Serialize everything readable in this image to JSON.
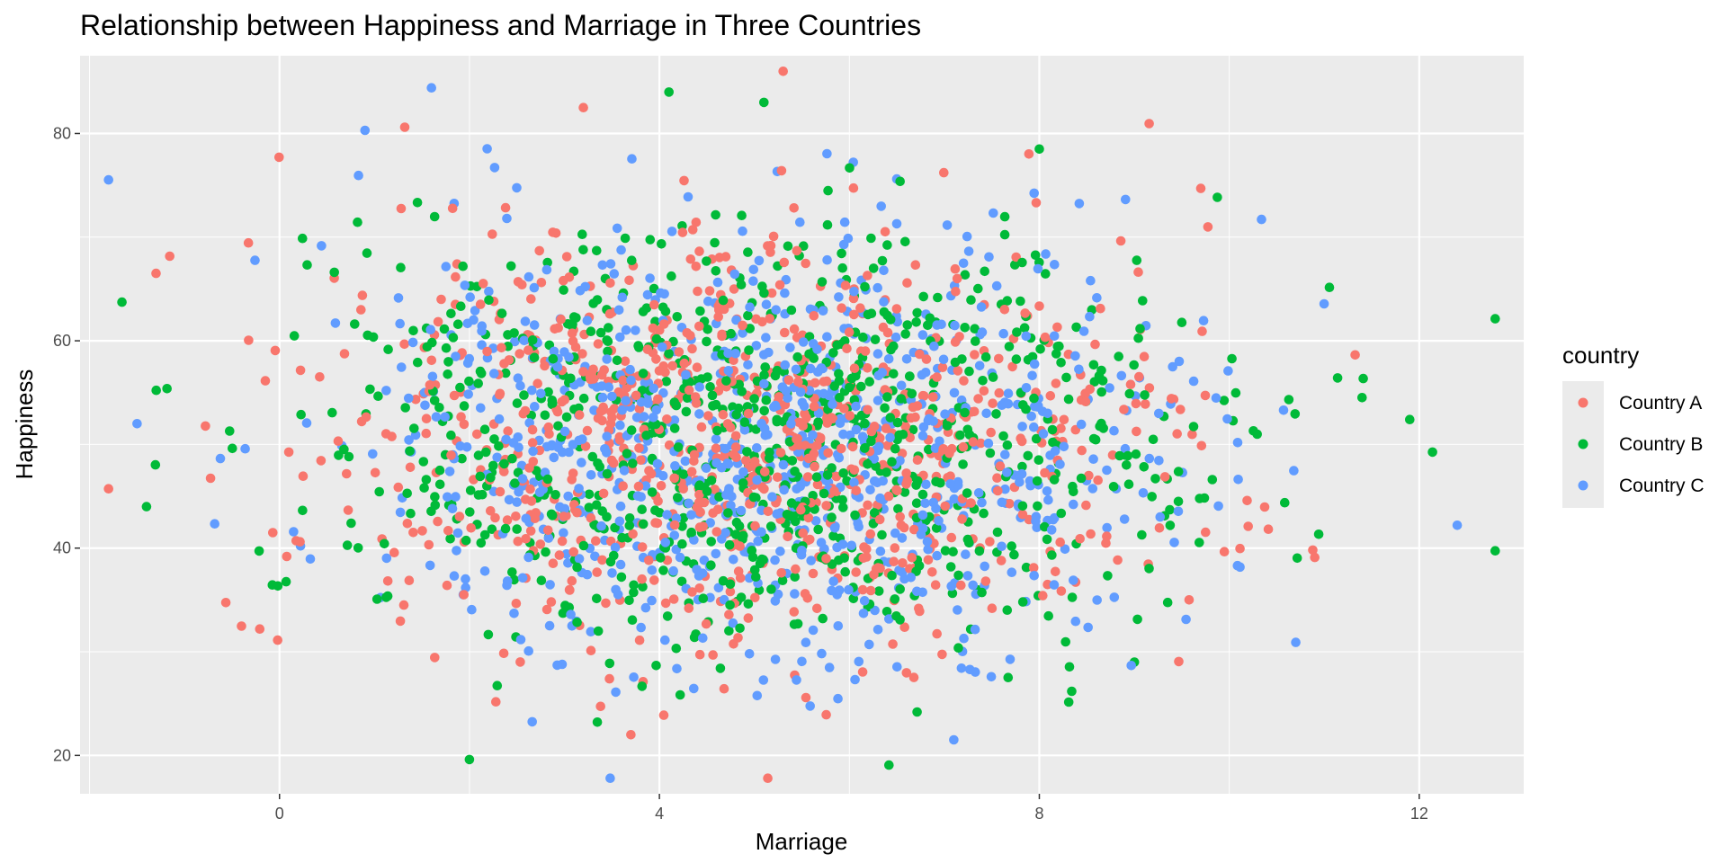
{
  "chart_data": {
    "type": "scatter",
    "title": "Relationship between Happiness and Marriage in Three Countries",
    "xlabel": "Marriage",
    "ylabel": "Happiness",
    "xlim": [
      -2.1,
      13.1
    ],
    "ylim": [
      16.3,
      87.5
    ],
    "x_ticks": [
      0,
      4,
      8,
      12
    ],
    "y_ticks": [
      20,
      40,
      60,
      80
    ],
    "x_tick_labels": [
      "0",
      "4",
      "8",
      "12"
    ],
    "y_tick_labels": [
      "20",
      "40",
      "60",
      "80"
    ],
    "grid": true,
    "legend": {
      "title": "country",
      "position": "right"
    },
    "series": [
      {
        "name": "Country A",
        "color": "#F8766D",
        "mean_x": 5.0,
        "sd_x": 2.2,
        "mean_y": 50,
        "sd_y": 10,
        "n": 900
      },
      {
        "name": "Country B",
        "color": "#00BA38",
        "mean_x": 5.1,
        "sd_x": 2.3,
        "mean_y": 50,
        "sd_y": 10,
        "n": 900
      },
      {
        "name": "Country C",
        "color": "#619CFF",
        "mean_x": 5.2,
        "sd_x": 2.1,
        "mean_y": 50,
        "sd_y": 10,
        "n": 900
      }
    ],
    "highlighted_points": [
      {
        "series": "Country A",
        "x": -1.3,
        "y": 66.5
      },
      {
        "series": "Country A",
        "x": 3.2,
        "y": 82.5
      },
      {
        "series": "Country A",
        "x": 9.7,
        "y": 74.7
      },
      {
        "series": "Country A",
        "x": 3.7,
        "y": 22.0
      },
      {
        "series": "Country A",
        "x": 10.9,
        "y": 39.1
      },
      {
        "series": "Country B",
        "x": 4.1,
        "y": 84.0
      },
      {
        "series": "Country B",
        "x": 5.1,
        "y": 83.0
      },
      {
        "series": "Country B",
        "x": 2.0,
        "y": 19.6
      },
      {
        "series": "Country B",
        "x": 11.9,
        "y": 52.4
      },
      {
        "series": "Country B",
        "x": -1.4,
        "y": 44.0
      },
      {
        "series": "Country B",
        "x": 8.0,
        "y": 78.5
      },
      {
        "series": "Country C",
        "x": 1.6,
        "y": 84.4
      },
      {
        "series": "Country C",
        "x": 0.9,
        "y": 80.3
      },
      {
        "series": "Country C",
        "x": 12.4,
        "y": 42.2
      },
      {
        "series": "Country C",
        "x": -1.5,
        "y": 52.0
      },
      {
        "series": "Country C",
        "x": 7.1,
        "y": 21.5
      },
      {
        "series": "Country C",
        "x": 10.7,
        "y": 30.9
      }
    ]
  }
}
